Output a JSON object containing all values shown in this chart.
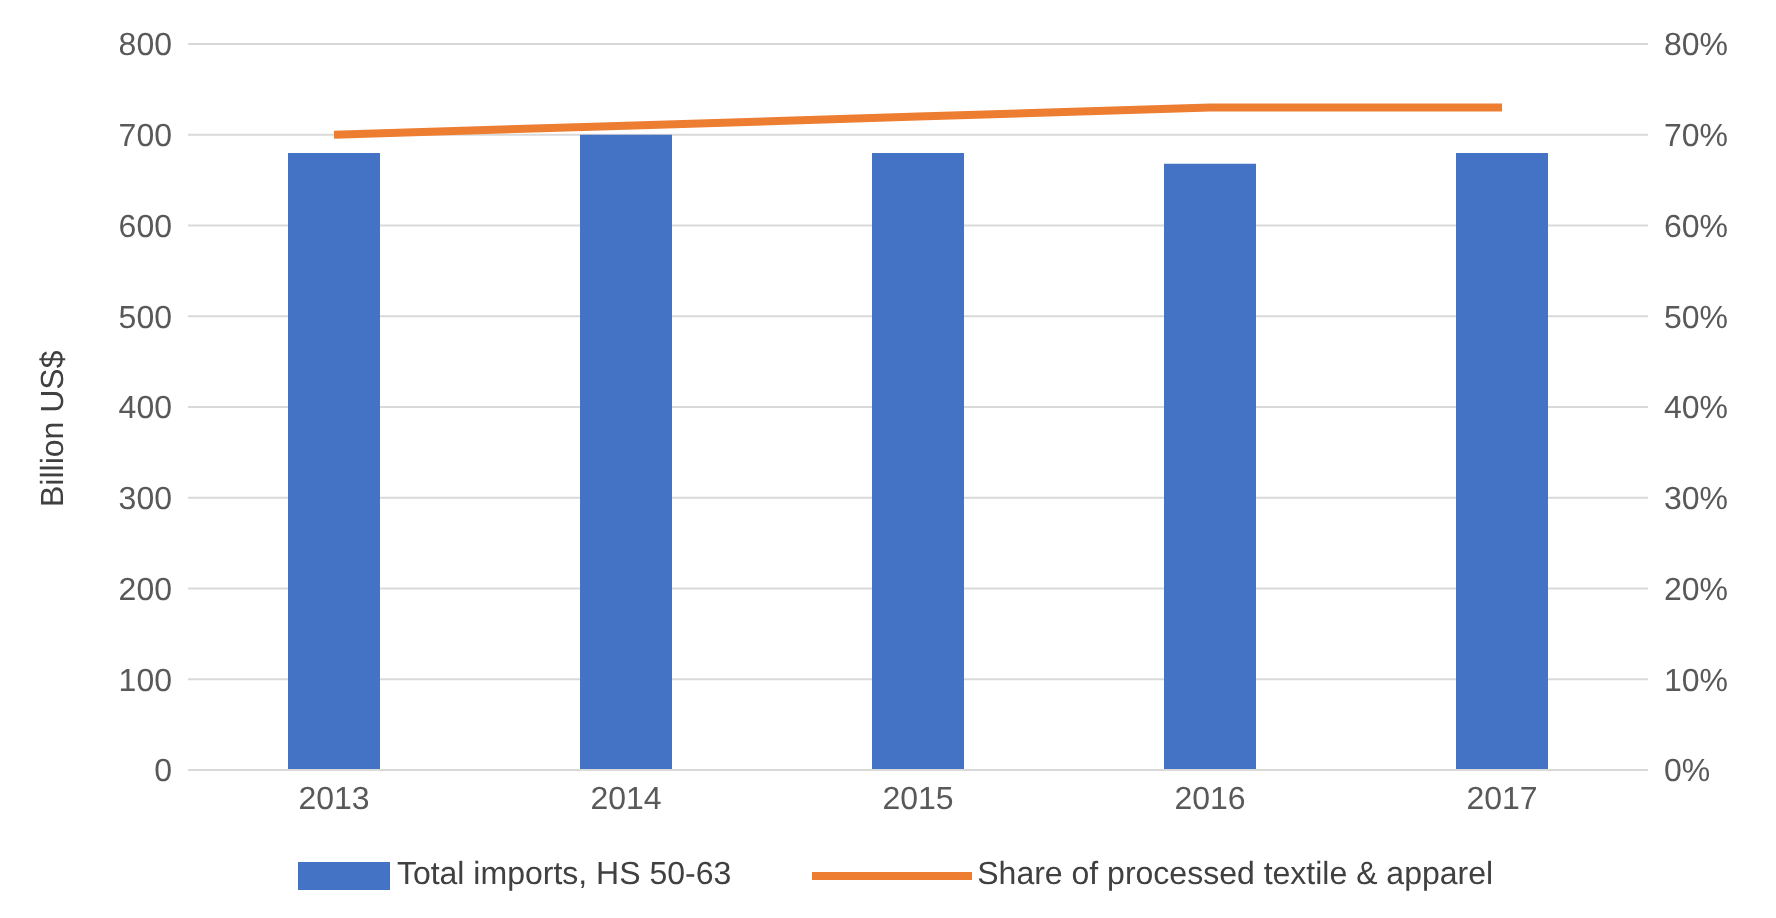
{
  "chart_data": {
    "type": "bar",
    "ylabel": "Billion US$",
    "categories": [
      "2013",
      "2014",
      "2015",
      "2016",
      "2017"
    ],
    "series": [
      {
        "name": "Total imports, HS 50-63",
        "color": "#4472c4",
        "values": [
          680,
          700,
          680,
          668,
          680
        ]
      },
      {
        "name": "Share of processed textile & apparel",
        "type": "line",
        "axis": "y2",
        "color": "#ed7d31",
        "values": [
          70,
          71,
          72,
          73,
          73
        ]
      }
    ],
    "ylim": [
      0,
      800
    ],
    "yticks": [
      0,
      100,
      200,
      300,
      400,
      500,
      600,
      700,
      800
    ],
    "y2lim": [
      0,
      80
    ],
    "y2ticks": [
      {
        "value": 0,
        "label": "0%"
      },
      {
        "value": 10,
        "label": "10%"
      },
      {
        "value": 20,
        "label": "20%"
      },
      {
        "value": 30,
        "label": "30%"
      },
      {
        "value": 40,
        "label": "40%"
      },
      {
        "value": 50,
        "label": "50%"
      },
      {
        "value": 60,
        "label": "60%"
      },
      {
        "value": 70,
        "label": "70%"
      },
      {
        "value": 80,
        "label": "80%"
      }
    ],
    "grid": "y",
    "legend": "bottom",
    "marker": "none",
    "line_style": "solid"
  }
}
